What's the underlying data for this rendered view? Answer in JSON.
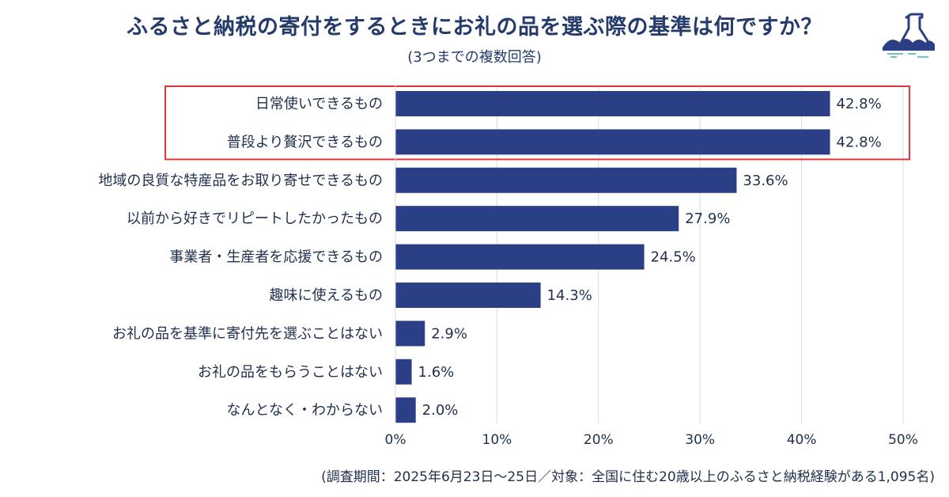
{
  "title": "ふるさと納税の寄付をするときにお礼の品を選ぶ際の基準は何ですか？",
  "subtitle": "(3つまでの複数回答)",
  "footnote": "(調査期間：2025年6月23日〜25日／対象：全国に住む20歳以上のふるさと納税経験がある1,095名)",
  "logo_icon": "flask-wave-icon",
  "colors": {
    "bar": "#2b3f86",
    "highlight_box": "#e0353b",
    "grid": "#d8dbe0",
    "text": "#1f2f4d"
  },
  "chart_data": {
    "type": "bar",
    "orientation": "horizontal",
    "categories": [
      "日常使いできるもの",
      "普段より贅沢できるもの",
      "地域の良質な特産品をお取り寄せできるもの",
      "以前から好きでリピートしたかったもの",
      "事業者・生産者を応援できるもの",
      "趣味に使えるもの",
      "お礼の品を基準に寄付先を選ぶことはない",
      "お礼の品をもらうことはない",
      "なんとなく・わからない"
    ],
    "values": [
      42.8,
      42.8,
      33.6,
      27.9,
      24.5,
      14.3,
      2.9,
      1.6,
      2.0
    ],
    "value_labels": [
      "42.8%",
      "42.8%",
      "33.6%",
      "27.9%",
      "24.5%",
      "14.3%",
      "2.9%",
      "1.6%",
      "2.0%"
    ],
    "xlim": [
      0,
      50
    ],
    "x_ticks": [
      0,
      10,
      20,
      30,
      40,
      50
    ],
    "x_tick_labels": [
      "0%",
      "10%",
      "20%",
      "30%",
      "40%",
      "50%"
    ],
    "grid": true,
    "highlighted_categories": [
      0,
      1
    ]
  }
}
